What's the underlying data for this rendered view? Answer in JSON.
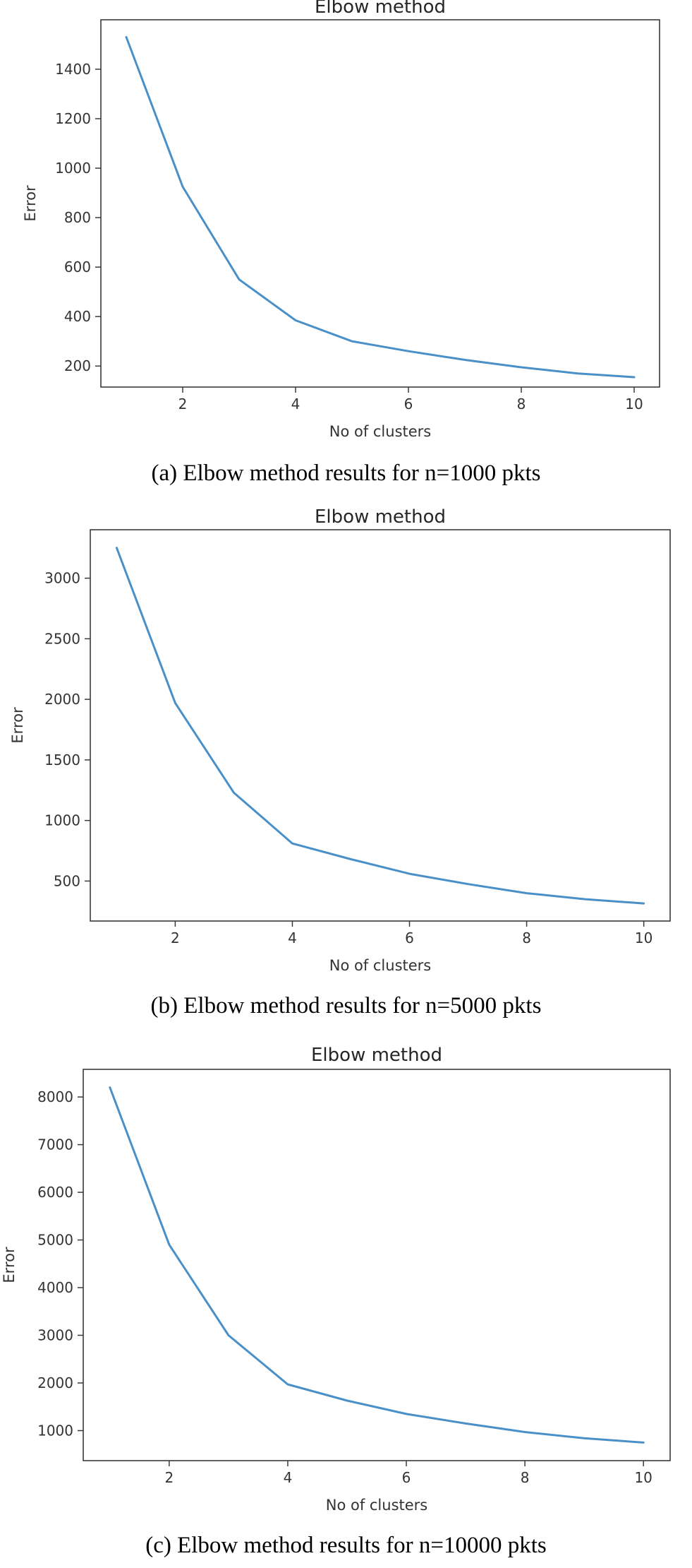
{
  "colors": {
    "line": "#4a90c8"
  },
  "figures": [
    {
      "caption": "(a) Elbow method results for n=1000 pkts"
    },
    {
      "caption": "(b) Elbow method results for n=5000 pkts"
    },
    {
      "caption": "(c) Elbow method results for n=10000 pkts"
    }
  ],
  "chart_data": [
    {
      "type": "line",
      "title": "Elbow method",
      "xlabel": "No of clusters",
      "ylabel": "Error",
      "x": [
        1,
        2,
        3,
        4,
        5,
        6,
        7,
        8,
        9,
        10
      ],
      "values": [
        1530,
        925,
        550,
        385,
        300,
        260,
        225,
        195,
        170,
        155
      ],
      "xticks": [
        2,
        4,
        6,
        8,
        10
      ],
      "yticks": [
        200,
        400,
        600,
        800,
        1000,
        1200,
        1400
      ],
      "xlim": [
        0.55,
        10.45
      ],
      "ylim": [
        115,
        1600
      ],
      "grid": false
    },
    {
      "type": "line",
      "title": "Elbow method",
      "xlabel": "No of clusters",
      "ylabel": "Error",
      "x": [
        1,
        2,
        3,
        4,
        5,
        6,
        7,
        8,
        9,
        10
      ],
      "values": [
        3250,
        1970,
        1230,
        810,
        680,
        560,
        475,
        400,
        350,
        315
      ],
      "xticks": [
        2,
        4,
        6,
        8,
        10
      ],
      "yticks": [
        500,
        1000,
        1500,
        2000,
        2500,
        3000
      ],
      "xlim": [
        0.55,
        10.45
      ],
      "ylim": [
        170,
        3400
      ],
      "grid": false
    },
    {
      "type": "line",
      "title": "Elbow method",
      "xlabel": "No of clusters",
      "ylabel": "Error",
      "x": [
        1,
        2,
        3,
        4,
        5,
        6,
        7,
        8,
        9,
        10
      ],
      "values": [
        8200,
        4900,
        3000,
        1970,
        1630,
        1350,
        1150,
        970,
        840,
        750
      ],
      "xticks": [
        2,
        4,
        6,
        8,
        10
      ],
      "yticks": [
        1000,
        2000,
        3000,
        4000,
        5000,
        6000,
        7000,
        8000
      ],
      "xlim": [
        0.55,
        10.45
      ],
      "ylim": [
        370,
        8580
      ],
      "grid": false
    }
  ]
}
